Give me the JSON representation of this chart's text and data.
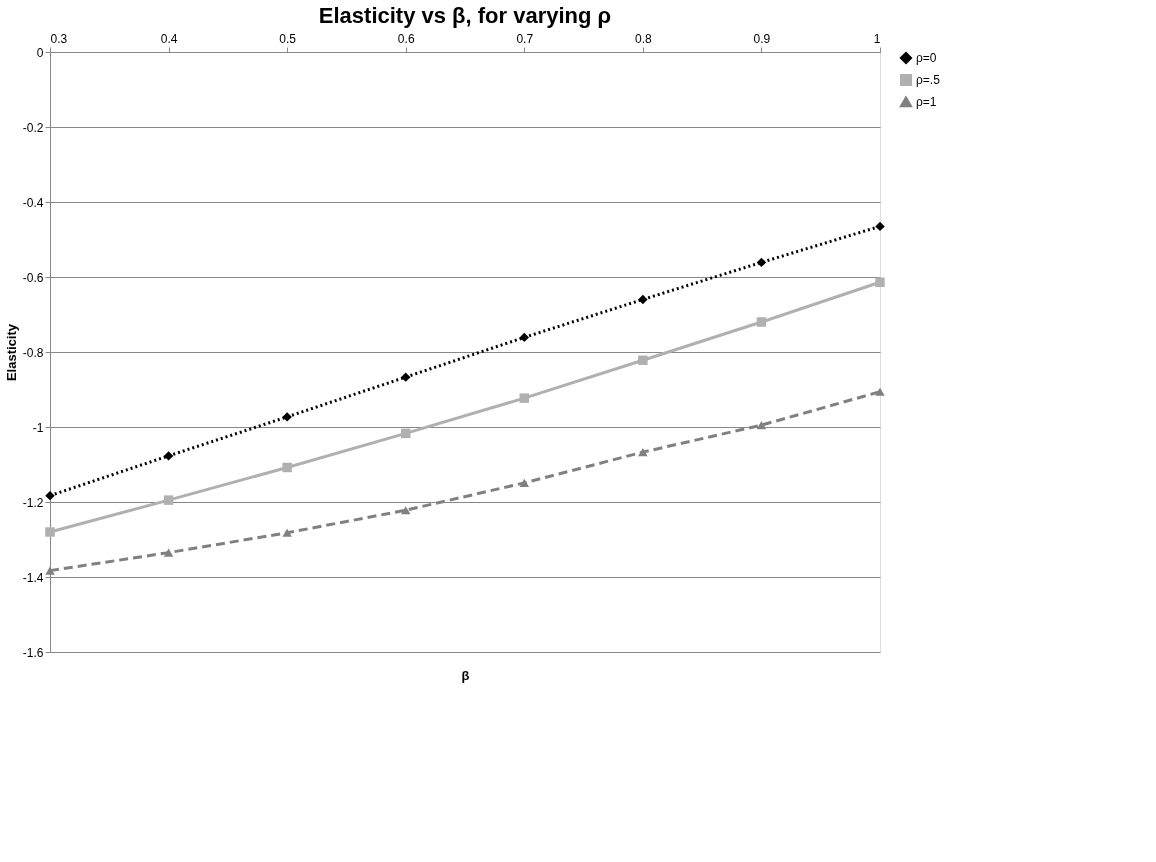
{
  "chart_data": {
    "type": "line",
    "title": "Elasticity vs β, for varying ρ",
    "xlabel": "β",
    "ylabel": "Elasticity",
    "x": [
      0.3,
      0.4,
      0.5,
      0.6,
      0.7,
      0.8,
      0.9,
      1
    ],
    "series": [
      {
        "name": "ρ=0",
        "color": "#000000",
        "marker": "diamond",
        "line_style": "dotted",
        "values": [
          -1.183,
          -1.077,
          -0.973,
          -0.867,
          -0.761,
          -0.66,
          -0.561,
          -0.465
        ]
      },
      {
        "name": "ρ=.5",
        "color": "#b0b0b0",
        "marker": "square",
        "line_style": "solid",
        "values": [
          -1.28,
          -1.195,
          -1.108,
          -1.017,
          -0.923,
          -0.822,
          -0.72,
          -0.614
        ]
      },
      {
        "name": "ρ=1",
        "color": "#808080",
        "marker": "triangle",
        "line_style": "dashed",
        "values": [
          -1.383,
          -1.335,
          -1.282,
          -1.222,
          -1.149,
          -1.067,
          -0.995,
          -0.906
        ]
      }
    ],
    "xlim": [
      0.3,
      1
    ],
    "xticks": [
      0.3,
      0.4,
      0.5,
      0.6,
      0.7,
      0.8,
      0.9,
      1
    ],
    "ylim": [
      -1.6,
      0
    ],
    "yticks": [
      -1.6,
      -1.4,
      -1.2,
      -1,
      -0.8,
      -0.6,
      -0.4,
      -0.2,
      0
    ],
    "grid": "y",
    "legend": "right"
  }
}
